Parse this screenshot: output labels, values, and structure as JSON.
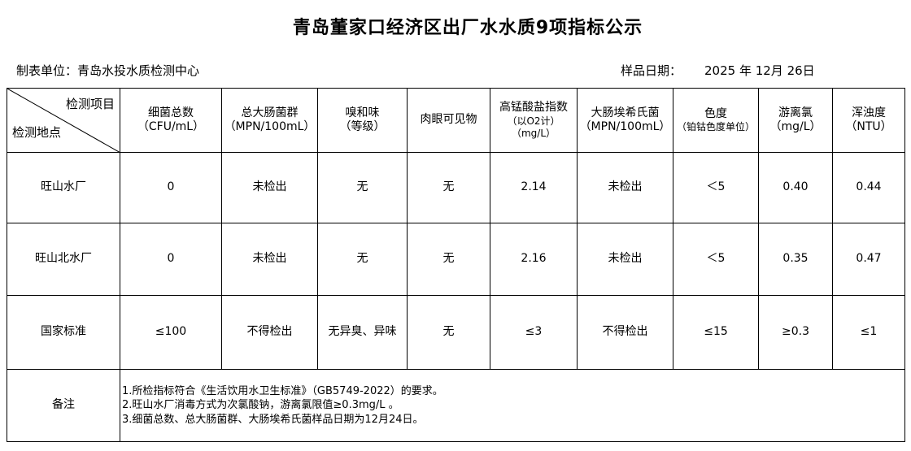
{
  "title": "青岛董家口经济区出厂水水质9项指标公示",
  "unit_label": "制表单位：青岛水投水质检测中心",
  "date_label": "样品日期：",
  "date_value": "2025 年 12月 26日",
  "header": {
    "item": "检测项目",
    "site": "检测地点",
    "columns": [
      {
        "name": "细菌总数",
        "unit": "（CFU/mL）"
      },
      {
        "name": "总大肠菌群",
        "unit": "（MPN/100mL）"
      },
      {
        "name": "嗅和味",
        "unit": "（等级）"
      },
      {
        "name": "肉眼可见物",
        "unit": ""
      },
      {
        "name": "高锰酸盐指数",
        "unit": "（以O2计）",
        "unit2": "（mg/L）"
      },
      {
        "name": "大肠埃希氏菌",
        "unit": "（MPN/100mL）"
      },
      {
        "name": "色度",
        "unit": "（铂钴色度单位）"
      },
      {
        "name": "游离氯",
        "unit": "（mg/L）"
      },
      {
        "name": "浑浊度",
        "unit": "（NTU）"
      }
    ]
  },
  "rows": [
    {
      "site": "旺山水厂",
      "values": [
        "0",
        "未检出",
        "无",
        "无",
        "2.14",
        "未检出",
        "＜5",
        "0.40",
        "0.44"
      ]
    },
    {
      "site": "旺山北水厂",
      "values": [
        "0",
        "未检出",
        "无",
        "无",
        "2.16",
        "未检出",
        "＜5",
        "0.35",
        "0.47"
      ]
    },
    {
      "site": "国家标准",
      "values": [
        "≤100",
        "不得检出",
        "无异臭、异味",
        "无",
        "≤3",
        "不得检出",
        "≤15",
        "≥0.3",
        "≤1"
      ]
    }
  ],
  "notes_label": "备注",
  "notes": [
    "1.所检指标符合《生活饮用水卫生标准》（GB5749-2022）的要求。",
    "2.旺山水厂消毒方式为次氯酸钠，游离氯限值≥0.3mg/L 。",
    "3.细菌总数、总大肠菌群、大肠埃希氏菌样品日期为12月24日。"
  ]
}
